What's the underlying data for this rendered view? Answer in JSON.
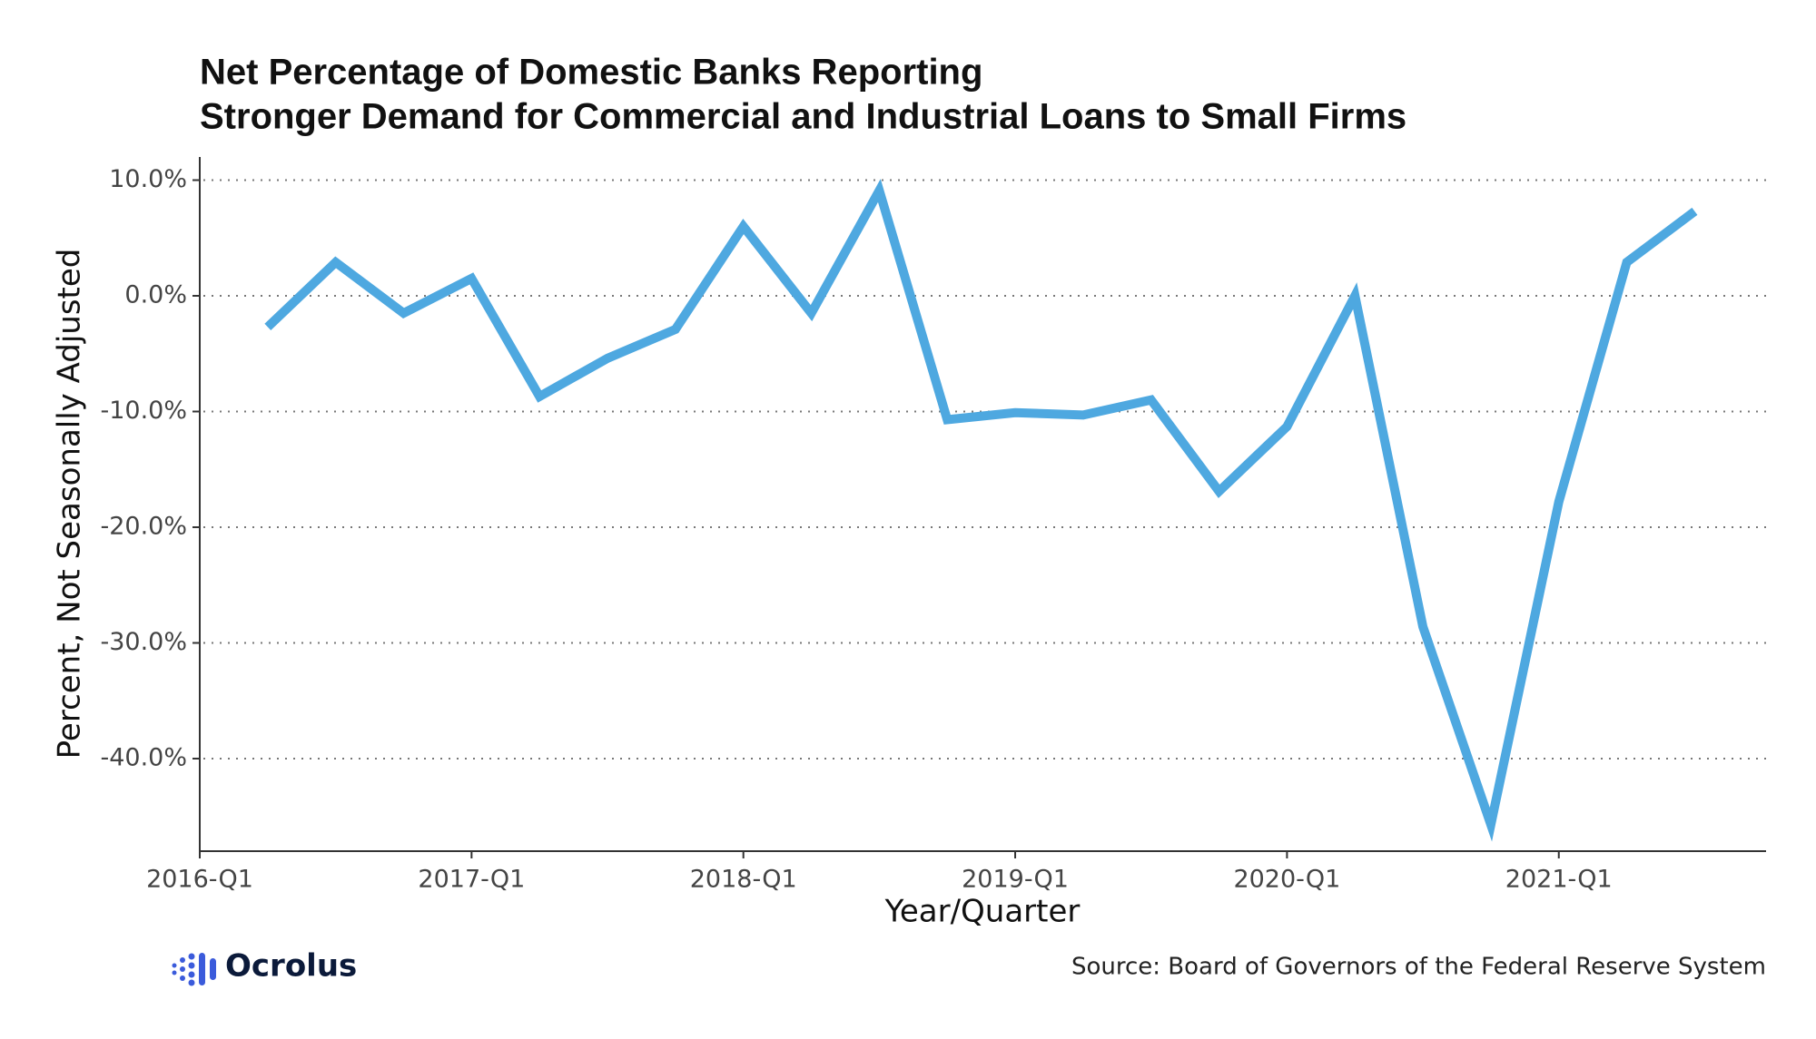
{
  "chart_data": {
    "type": "line",
    "title": [
      "Net Percentage of Domestic Banks Reporting",
      "Stronger Demand for Commercial and Industrial Loans to Small Firms"
    ],
    "x_label": "Year/Quarter",
    "y_label": "Percent, Not Seasonally Adjusted",
    "source": "Source: Board of Governors of the Federal Reserve System",
    "brand": "Ocrolus",
    "x": [
      "2016-Q2",
      "2016-Q3",
      "2016-Q4",
      "2017-Q1",
      "2017-Q2",
      "2017-Q3",
      "2017-Q4",
      "2018-Q1",
      "2018-Q2",
      "2018-Q3",
      "2018-Q4",
      "2019-Q1",
      "2019-Q2",
      "2019-Q3",
      "2019-Q4",
      "2020-Q1",
      "2020-Q2",
      "2020-Q3",
      "2020-Q4",
      "2021-Q1",
      "2021-Q2",
      "2021-Q3"
    ],
    "series": [
      {
        "name": "Net Percentage",
        "color": "#4ea8e0",
        "values": [
          -2.7,
          2.9,
          -1.5,
          1.5,
          -8.7,
          -5.4,
          -2.9,
          6.0,
          -1.5,
          9.1,
          -10.7,
          -10.1,
          -10.3,
          -9.0,
          -16.9,
          -11.3,
          0.0,
          -28.6,
          -45.7,
          -17.8,
          2.9,
          7.3
        ]
      }
    ],
    "xticks": [
      "2016-Q1",
      "2017-Q1",
      "2018-Q1",
      "2019-Q1",
      "2020-Q1",
      "2021-Q1"
    ],
    "ylim": [
      -48,
      12
    ],
    "yticks": [
      {
        "value": 10,
        "label": "10.0%"
      },
      {
        "value": 0,
        "label": "0.0%"
      },
      {
        "value": -10,
        "label": "-10.0%"
      },
      {
        "value": -20,
        "label": "-20.0%"
      },
      {
        "value": -30,
        "label": "-30.0%"
      },
      {
        "value": -40,
        "label": "-40.0%"
      }
    ],
    "grid": true
  }
}
